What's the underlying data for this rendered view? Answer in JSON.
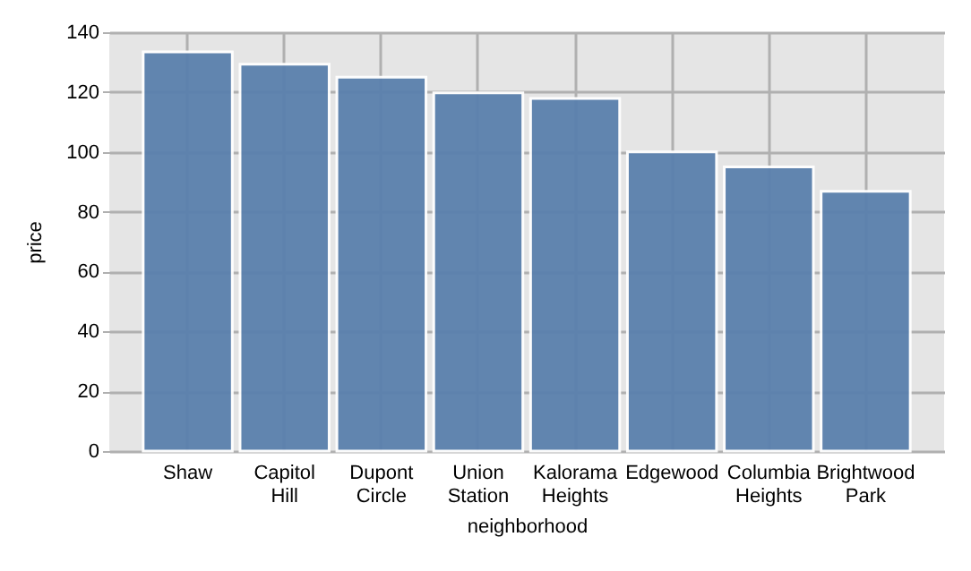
{
  "chart_data": {
    "type": "bar",
    "xlabel": "neighborhood",
    "ylabel": "price",
    "categories": [
      "Shaw",
      "Capitol Hill",
      "Dupont Circle",
      "Union Station",
      "Kalorama Heights",
      "Edgewood",
      "Columbia Heights",
      "Brightwood Park"
    ],
    "values": [
      133.4,
      129.3,
      125,
      119.7,
      117.9,
      100,
      95,
      86.8
    ],
    "color": "#5a80ad",
    "ylim": [
      0,
      140
    ],
    "yticks": [
      0,
      20,
      40,
      60,
      80,
      100,
      120,
      140
    ],
    "grid": true
  }
}
